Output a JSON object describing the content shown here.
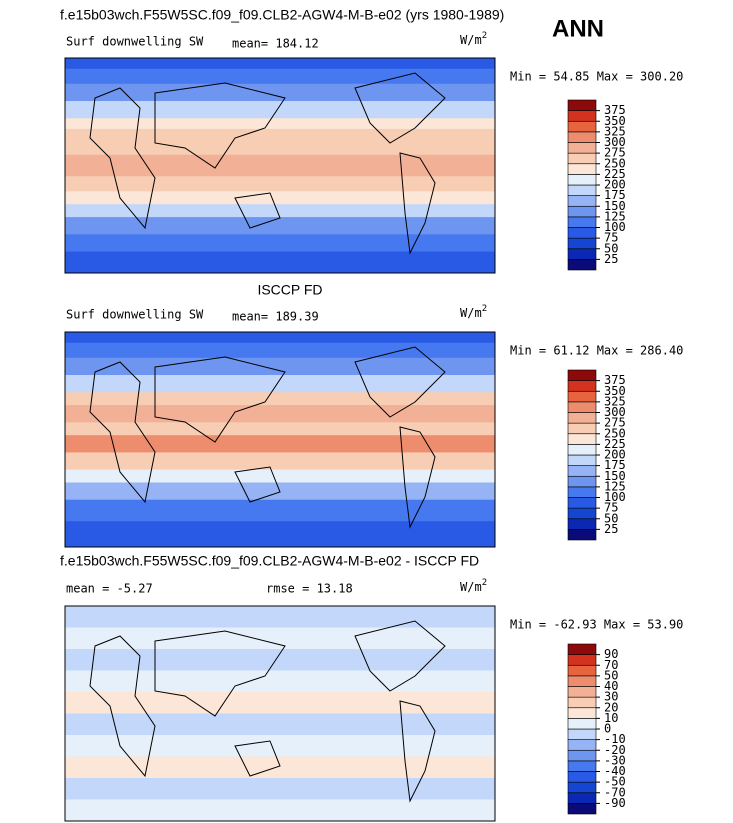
{
  "header": {
    "title": "f.e15b03wch.F55W5SC.f09_f09.CLB2-AGW4-M-B-e02 (yrs 1980-1989)",
    "season": "ANN"
  },
  "colormap": [
    "#0a0a78",
    "#0a28b4",
    "#1446d2",
    "#285ae6",
    "#4678f0",
    "#6e96f0",
    "#96b4f5",
    "#c3d7fa",
    "#e6f0fa",
    "#fbe6d7",
    "#f7cdb4",
    "#f2b096",
    "#ee8c6e",
    "#e8643f",
    "#d2321e",
    "#8c0a0a"
  ],
  "panels": [
    {
      "variable": "Surf downwelling SW",
      "stats": [
        "mean= 184.12"
      ],
      "units": "W/m",
      "units_sup": "2",
      "minmax": "Min =  54.85 Max = 300.20",
      "levels": [
        25,
        50,
        75,
        100,
        125,
        150,
        175,
        200,
        225,
        250,
        275,
        300,
        325,
        350,
        375
      ]
    },
    {
      "title": "ISCCP FD",
      "variable": "Surf downwelling SW",
      "stats": [
        "mean= 189.39"
      ],
      "units": "W/m",
      "units_sup": "2",
      "minmax": "Min =  61.12 Max = 286.40",
      "levels": [
        25,
        50,
        75,
        100,
        125,
        150,
        175,
        200,
        225,
        250,
        275,
        300,
        325,
        350,
        375
      ]
    },
    {
      "title": "f.e15b03wch.F55W5SC.f09_f09.CLB2-AGW4-M-B-e02 - ISCCP FD",
      "stats": [
        "mean =  -5.27",
        "rmse =  13.18"
      ],
      "units": "W/m",
      "units_sup": "2",
      "minmax": "Min = -62.93 Max =  53.90",
      "levels": [
        -90,
        -70,
        -50,
        -40,
        -30,
        -20,
        -10,
        0,
        10,
        20,
        30,
        40,
        50,
        70,
        90
      ]
    }
  ]
}
